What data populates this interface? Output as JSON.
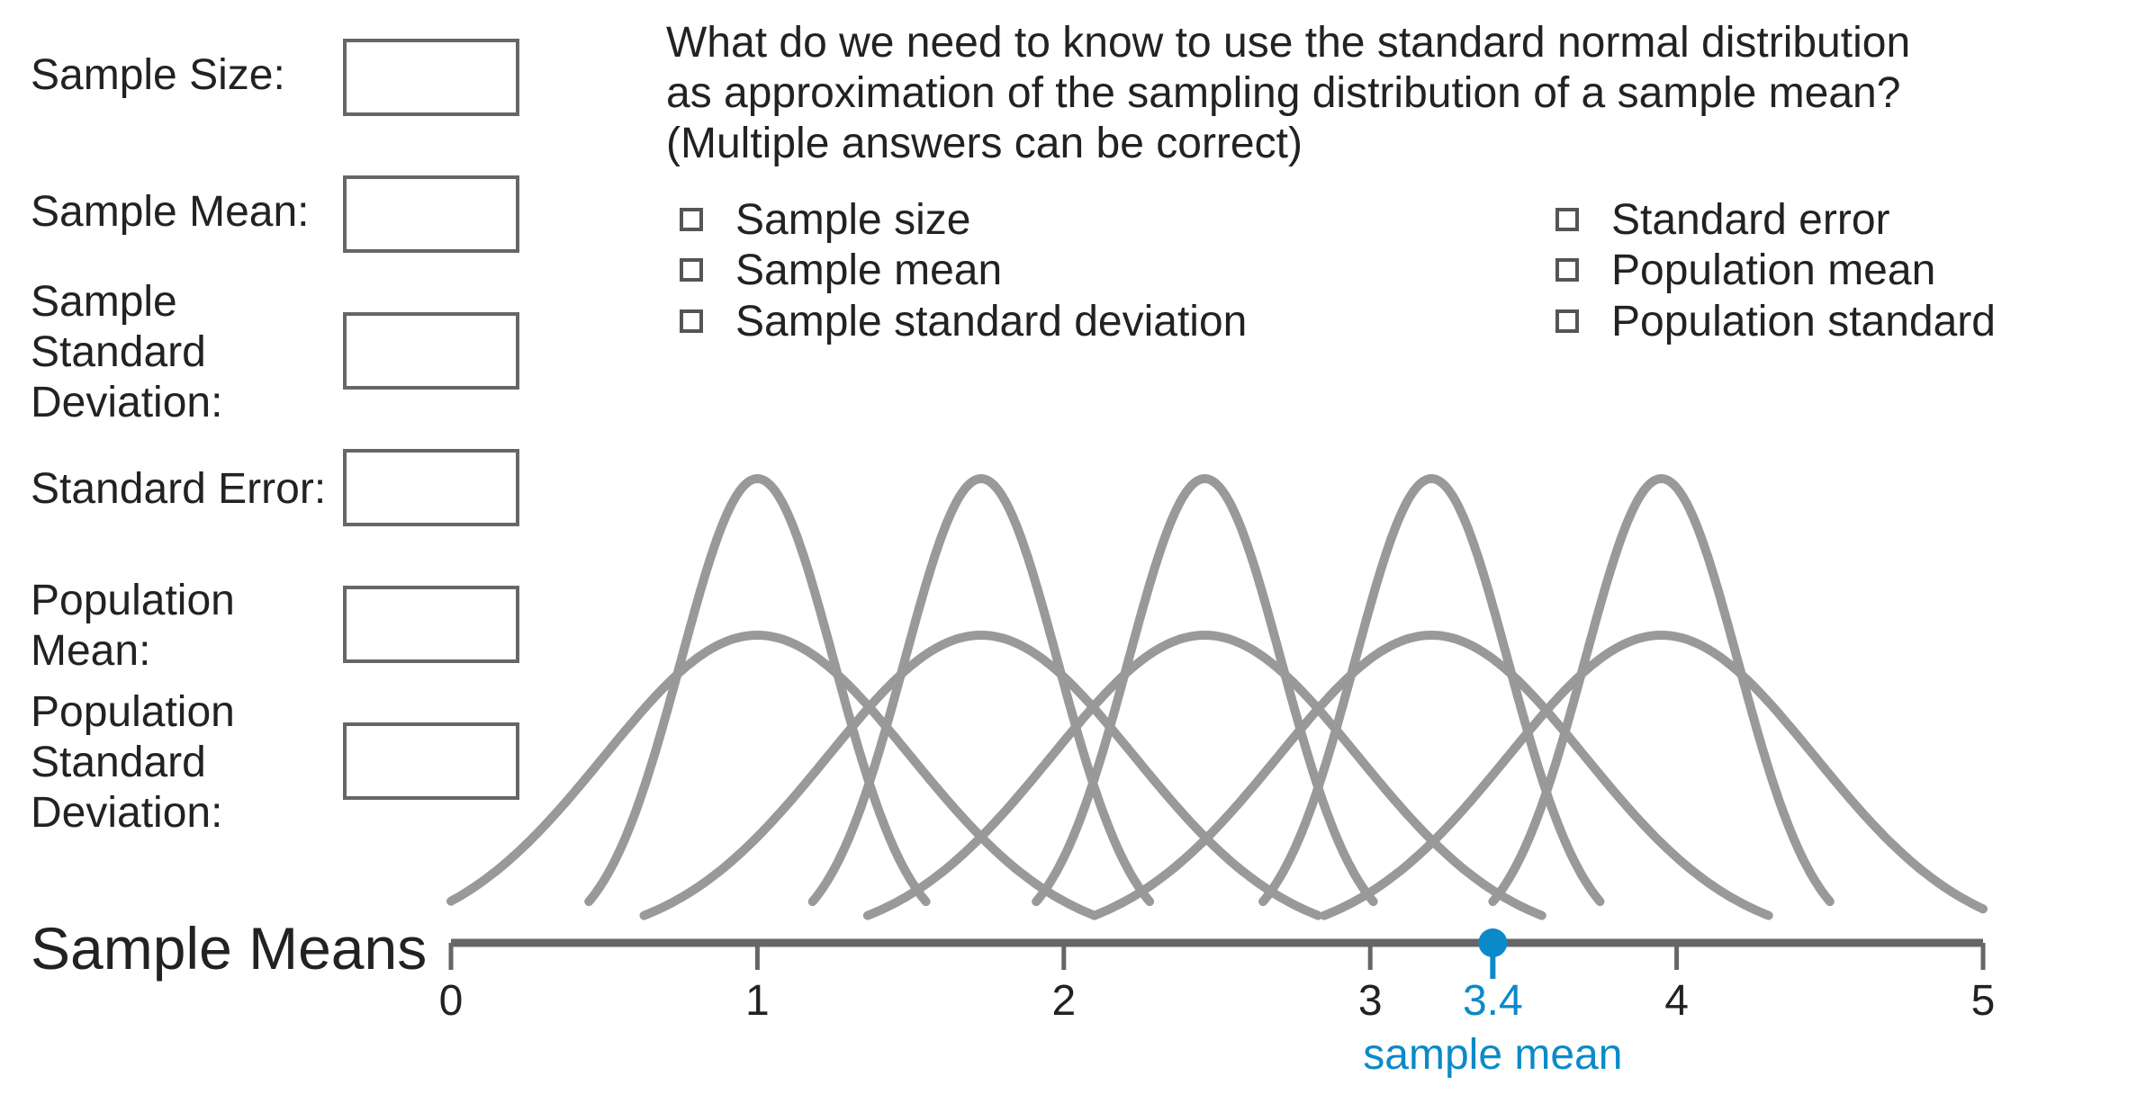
{
  "form": {
    "fields": [
      {
        "label_lines": [
          "Sample Size:"
        ],
        "value": ""
      },
      {
        "label_lines": [
          "Sample Mean:"
        ],
        "value": ""
      },
      {
        "label_lines": [
          "Sample",
          "Standard",
          "Deviation:"
        ],
        "value": ""
      },
      {
        "label_lines": [
          "Standard Error:"
        ],
        "value": ""
      },
      {
        "label_lines": [
          "Population",
          "Mean:"
        ],
        "value": ""
      },
      {
        "label_lines": [
          "Population",
          "Standard",
          "Deviation:"
        ],
        "value": ""
      }
    ]
  },
  "question": {
    "lines": [
      "What do we need to know to use the standard normal distribution",
      "as approximation of the sampling distribution of a sample mean?",
      "(Multiple answers can be correct)"
    ],
    "options": [
      {
        "label": "Sample size",
        "checked": false
      },
      {
        "label": "Sample mean",
        "checked": false
      },
      {
        "label": "Sample standard deviation",
        "checked": false
      },
      {
        "label": "Standard error",
        "checked": false
      },
      {
        "label": "Population mean",
        "checked": false
      },
      {
        "label": "Population standard",
        "checked": false
      }
    ]
  },
  "chart_data": {
    "type": "line",
    "xlabel": "Sample Means",
    "xlim": [
      0,
      5
    ],
    "ticks": [
      0,
      1,
      2,
      3,
      4,
      5
    ],
    "curves": [
      {
        "mean": 1.0,
        "sd": 0.25
      },
      {
        "mean": 1.73,
        "sd": 0.25
      },
      {
        "mean": 2.46,
        "sd": 0.25
      },
      {
        "mean": 3.2,
        "sd": 0.25
      },
      {
        "mean": 3.95,
        "sd": 0.25
      },
      {
        "mean": 1.0,
        "sd": 0.5
      },
      {
        "mean": 1.73,
        "sd": 0.5
      },
      {
        "mean": 2.46,
        "sd": 0.5
      },
      {
        "mean": 3.2,
        "sd": 0.5
      },
      {
        "mean": 3.95,
        "sd": 0.5
      }
    ],
    "marker": {
      "value": 3.4,
      "value_label": "3.4",
      "caption": "sample mean",
      "color": "#0a8ac9"
    },
    "curve_color": "#999999",
    "axis_color": "#666666"
  }
}
